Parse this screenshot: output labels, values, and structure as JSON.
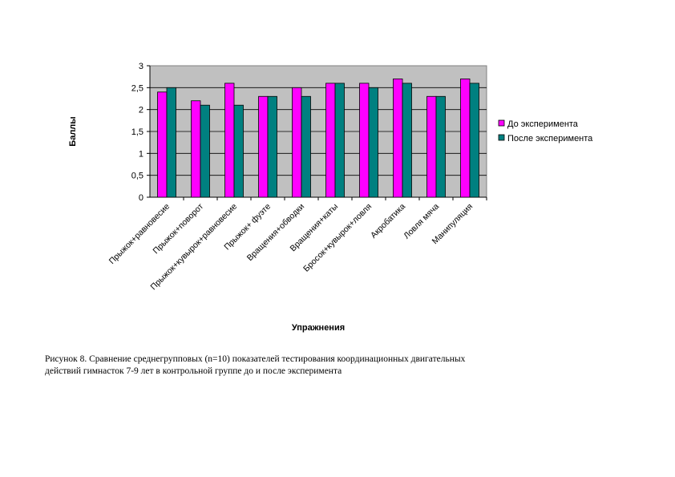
{
  "chart_data": {
    "type": "bar",
    "categories": [
      "Прыжок+равновесие",
      "Прыжок+поворот",
      "Прыжок+кувырок+равновесие",
      "Прыжок+ фуэте",
      "Вращения+обводки",
      "Вращения+каты",
      "Бросок+кувырок+ловля",
      "Акробатика",
      "Ловля мяча",
      "Манипуляция"
    ],
    "series": [
      {
        "name": "До эксперимента",
        "color": "#ff00ff",
        "values": [
          2.4,
          2.2,
          2.6,
          2.3,
          2.5,
          2.6,
          2.6,
          2.7,
          2.3,
          2.7
        ]
      },
      {
        "name": "После эксперимента",
        "color": "#008080",
        "values": [
          2.5,
          2.1,
          2.1,
          2.3,
          2.3,
          2.6,
          2.5,
          2.6,
          2.3,
          2.6
        ]
      }
    ],
    "xlabel": "Упражнения",
    "ylabel": "Баллы",
    "ylim": [
      0,
      3
    ],
    "yticks": [
      "0",
      "0,5",
      "1",
      "1,5",
      "2",
      "2,5",
      "3"
    ],
    "grid": true,
    "plot_background": "#c0c0c0",
    "legend_position": "right"
  },
  "caption": {
    "line1": "Рисунок 8. Сравнение среднегрупповых (n=10) показателей тестирования координационных двигательных",
    "line2": "действий гимнасток 7-9 лет в контрольной группе до и после эксперимента"
  }
}
